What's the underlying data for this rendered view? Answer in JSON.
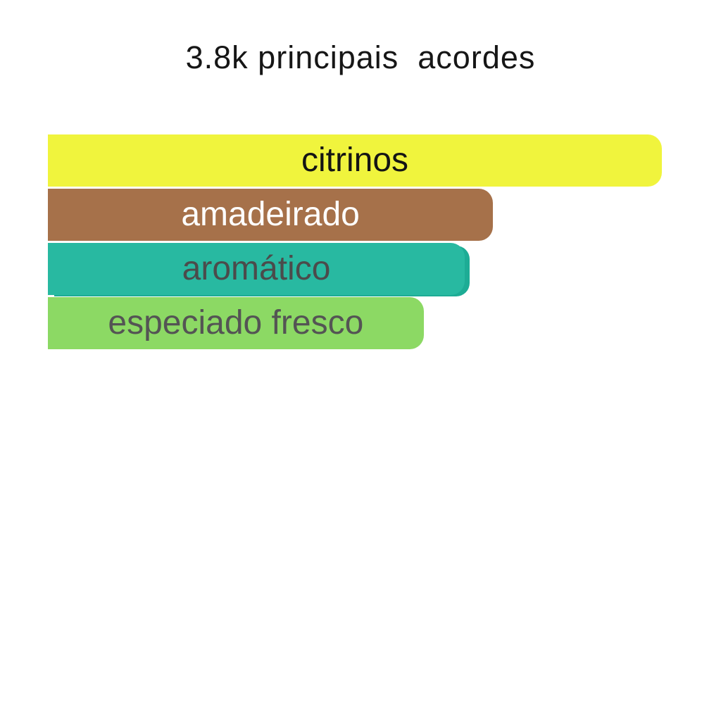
{
  "page": {
    "background_color": "#ffffff"
  },
  "header": {
    "title": "3.8k principais  acordes",
    "title_color": "#161616"
  },
  "chart_data": {
    "type": "bar",
    "orientation": "horizontal",
    "title": "3.8k principais  acordes",
    "categories": [
      "citrinos",
      "amadeirado",
      "aromático",
      "especiado fresco"
    ],
    "values": [
      100,
      72.5,
      67.9,
      61.2
    ],
    "value_unit": "relative-width-percent-of-longest-bar",
    "colors": [
      "#f0f43d",
      "#a6714a",
      "#28b9a1",
      "#8cd964"
    ],
    "label_colors": [
      "#141414",
      "#ffffff",
      "#4b4b4b",
      "#545454"
    ],
    "legend": false,
    "grid": false,
    "axis_labels": false,
    "data_labels": "category names rendered centered inside each bar"
  },
  "bars": [
    {
      "label": "citrinos",
      "value_pct": 100,
      "bar_color": "#f0f43d",
      "text_color": "#141414",
      "edge_color": "#e3e936",
      "end_cap_shadow": false
    },
    {
      "label": "amadeirado",
      "value_pct": 72.5,
      "bar_color": "#a6714a",
      "text_color": "#ffffff",
      "edge_color": "#9a6843",
      "end_cap_shadow": false
    },
    {
      "label": "aromático",
      "value_pct": 67.9,
      "bar_color": "#28b9a1",
      "text_color": "#4b4b4b",
      "edge_color": "#1dac95",
      "end_cap_shadow": true
    },
    {
      "label": "especiado fresco",
      "value_pct": 61.2,
      "bar_color": "#8cd964",
      "text_color": "#545454",
      "edge_color": "#7ecd57",
      "end_cap_shadow": false
    }
  ]
}
